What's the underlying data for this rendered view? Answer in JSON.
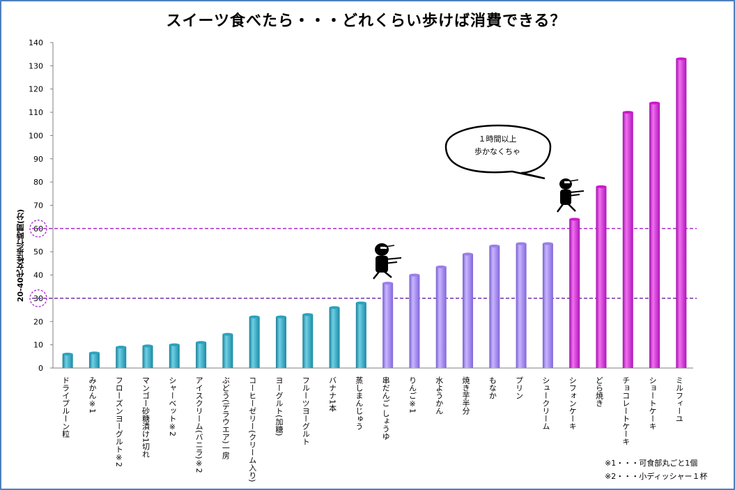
{
  "chart_data": {
    "type": "bar",
    "title": "スイーツ食べたら・・・どれくらい歩けば消費できる？",
    "ylabel": "20-40代女性歩行時間(分)",
    "xlabel": "",
    "ylim": [
      0,
      140
    ],
    "yticks": [
      0,
      10,
      20,
      30,
      40,
      50,
      60,
      70,
      80,
      90,
      100,
      110,
      120,
      130,
      140
    ],
    "grid": false,
    "categories": [
      "ドライプルーン粒",
      "みかん※1",
      "フローズンヨーグルト※2",
      "マンゴー砂糖漬け1切れ",
      "シャーベット※2",
      "アイスクリーム(バニラ)※2",
      "ぶどう(デラウエア)一房",
      "コーヒーゼリー(クリーム入り)",
      "ヨーグルト(加糖)",
      "フルーツヨーグルト",
      "バナナ1本",
      "蒸しまんじゅう",
      "串だんご しょうゆ",
      "りんご※1",
      "水ようかん",
      "焼き芋半分",
      "もなか",
      "プリン",
      "シュークリーム",
      "シフォンケーキ",
      "どら焼き",
      "チョコレートケーキ",
      "ショートケーキ",
      "ミルフィーユ"
    ],
    "values": [
      6,
      6.5,
      9,
      9.5,
      10,
      11,
      14.5,
      22,
      22,
      23,
      26,
      28,
      36.5,
      40,
      43.5,
      49,
      52.5,
      53.5,
      53.5,
      64,
      78,
      110,
      114,
      133
    ],
    "bar_groups": [
      "teal",
      "teal",
      "teal",
      "teal",
      "teal",
      "teal",
      "teal",
      "teal",
      "teal",
      "teal",
      "teal",
      "teal",
      "purple",
      "purple",
      "purple",
      "purple",
      "purple",
      "purple",
      "purple",
      "magenta",
      "magenta",
      "magenta",
      "magenta",
      "magenta"
    ],
    "reference_lines": [
      {
        "value": 30,
        "color": "#7b3fb0",
        "style": "dashed"
      },
      {
        "value": 60,
        "color": "#b03fd0",
        "style": "dashed"
      }
    ],
    "highlighted_ticks": [
      30,
      60
    ],
    "annotation": "１時間以上\n歩かなくちゃ",
    "colors": {
      "teal": "#2ba3bd",
      "purple": "#9b7fe8",
      "magenta": "#cc19cc",
      "frame": "#4f81bd"
    }
  },
  "footnotes": [
    "※1・・・可食部丸ごと1個",
    "※2・・・小ディッシャー１杯"
  ],
  "icons": [
    "walking-figure-icon",
    "walking-figure-icon"
  ]
}
